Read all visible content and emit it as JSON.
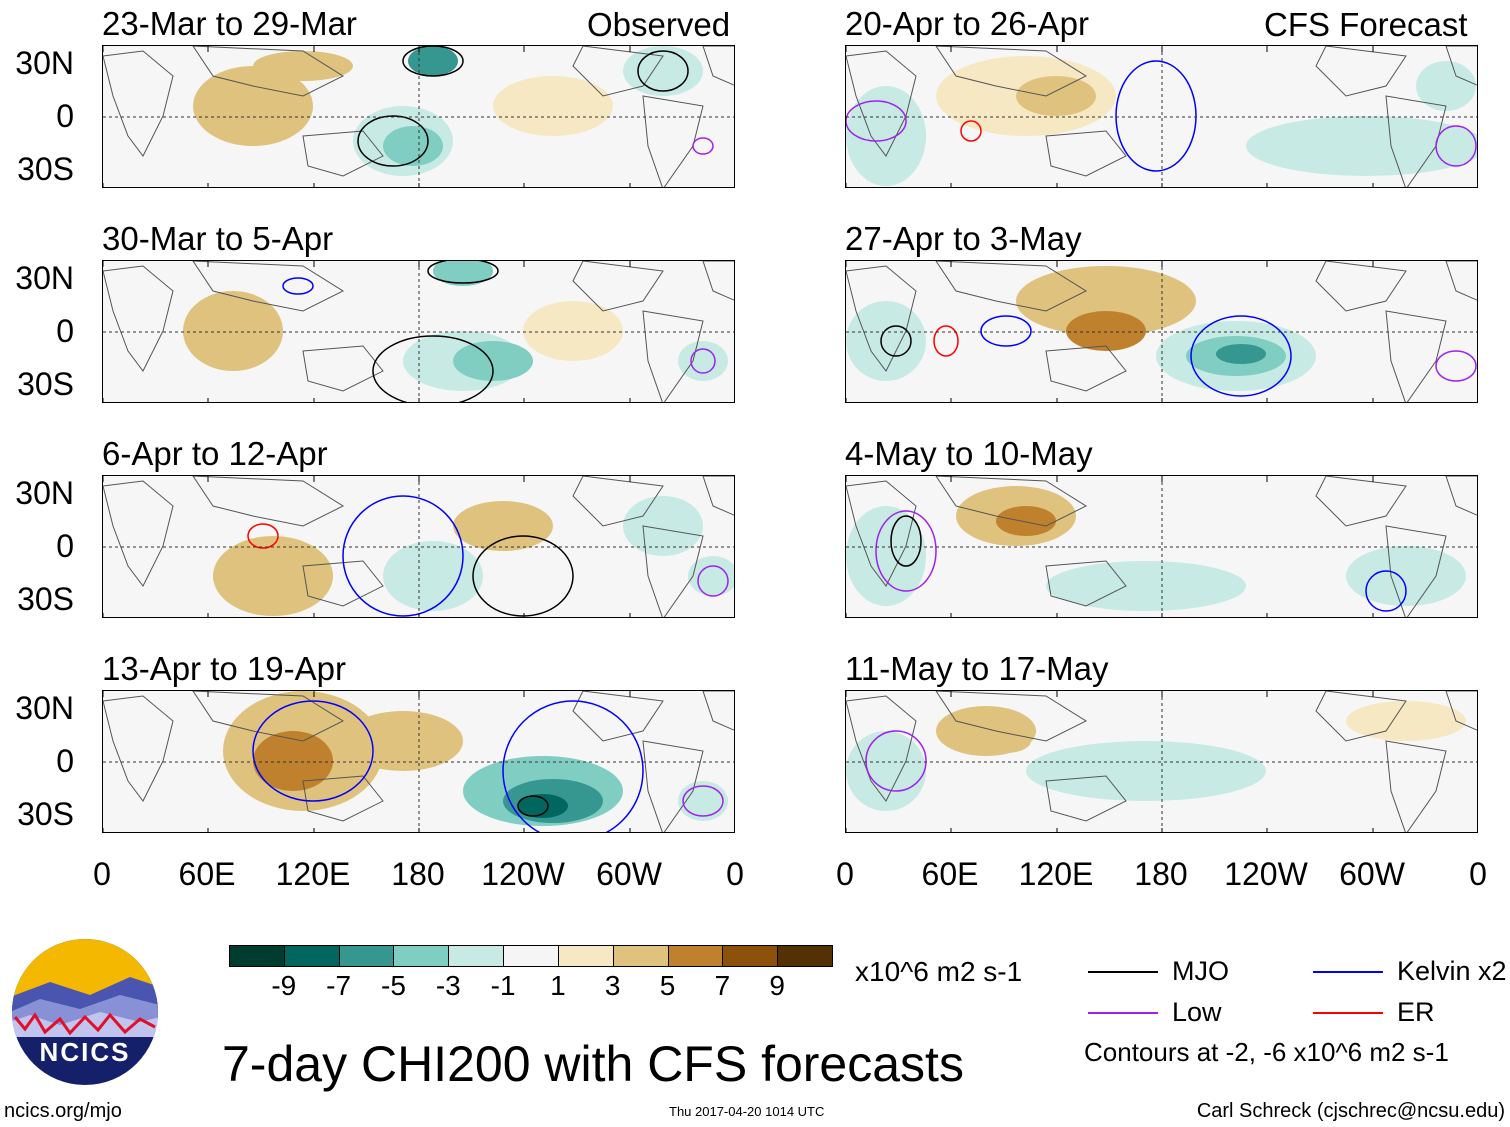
{
  "figure": {
    "title": "7-day CHI200 with CFS forecasts",
    "units": "x10^6 m2 s-1",
    "contour_note": "Contours at -2, -6 x10^6 m2 s-1",
    "site": "ncics.org/mjo",
    "timestamp": "Thu 2017-04-20 1014 UTC",
    "author": "Carl Schreck (cjschrec@ncsu.edu)",
    "logo_text": "NCICS"
  },
  "columns": {
    "left_label": "Observed",
    "right_label": "CFS Forecast"
  },
  "panels_left": [
    {
      "title": "23-Mar to 29-Mar"
    },
    {
      "title": "30-Mar to 5-Apr"
    },
    {
      "title": "6-Apr to 12-Apr"
    },
    {
      "title": "13-Apr to 19-Apr"
    }
  ],
  "panels_right": [
    {
      "title": "20-Apr to 26-Apr"
    },
    {
      "title": "27-Apr to 3-May"
    },
    {
      "title": "4-May to 10-May"
    },
    {
      "title": "11-May to 17-May"
    }
  ],
  "lat_labels": [
    "30N",
    "0",
    "30S"
  ],
  "lon_labels": [
    "0",
    "60E",
    "120E",
    "180",
    "120W",
    "60W",
    "0"
  ],
  "colorbar": {
    "labels": [
      "-9",
      "-7",
      "-5",
      "-3",
      "-1",
      "1",
      "3",
      "5",
      "7",
      "9"
    ],
    "colors": [
      "#003c30",
      "#01665e",
      "#35978f",
      "#80cdc1",
      "#c7eae5",
      "#f5f5f5",
      "#f6e8c3",
      "#dfc27d",
      "#bf812d",
      "#8c510a",
      "#543005"
    ]
  },
  "legend": [
    {
      "label": "MJO",
      "color": "#000000"
    },
    {
      "label": "Kelvin x2",
      "color": "#0000ff"
    },
    {
      "label": "Low",
      "color": "#a020f0"
    },
    {
      "label": "ER",
      "color": "#ff0000"
    }
  ]
}
